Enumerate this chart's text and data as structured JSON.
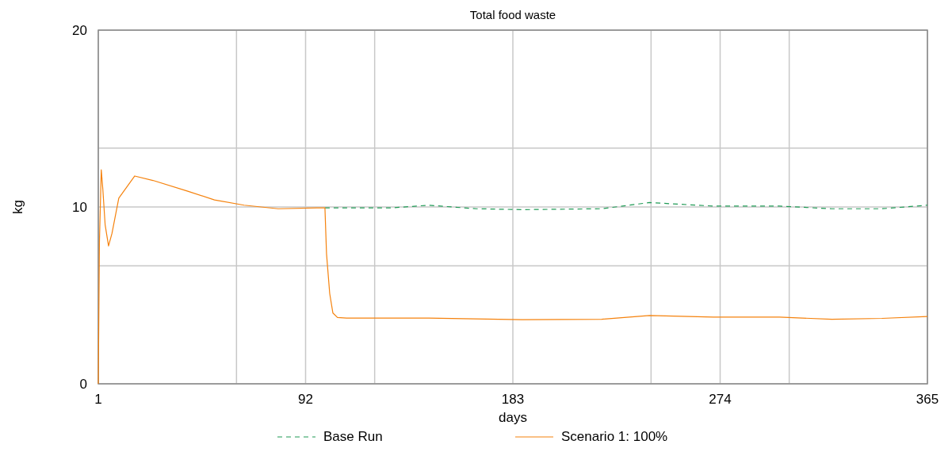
{
  "chart_data": {
    "type": "line",
    "title": "Total food waste",
    "xlabel": "days",
    "ylabel": "kg",
    "xlim": [
      1,
      365
    ],
    "ylim": [
      0,
      20
    ],
    "xticks": [
      1,
      {
        "value": 61.67,
        "label": null
      },
      92,
      {
        "value": 122.33,
        "label": null
      },
      183,
      {
        "value": 243.67,
        "label": null
      },
      274,
      {
        "value": 304.33,
        "label": null
      },
      365
    ],
    "yticks": [
      0,
      {
        "value": 6.67,
        "label": null
      },
      10,
      {
        "value": 13.33,
        "label": null
      },
      20
    ],
    "grid": true,
    "legend": "bottom",
    "series": [
      {
        "name": "Base Run",
        "color": "#1f9a55",
        "line_style": "dashed",
        "x": [
          100.5,
          107,
          130,
          146,
          167,
          187,
          222,
          243,
          271,
          300,
          323,
          345,
          365
        ],
        "values": [
          9.95,
          9.95,
          9.95,
          10.1,
          9.9,
          9.85,
          9.9,
          10.25,
          10.05,
          10.05,
          9.9,
          9.9,
          10.1
        ]
      },
      {
        "name": "Scenario 1: 100%",
        "color": "#f5820d",
        "line_style": "solid",
        "x": [
          1,
          1.5,
          2.3,
          3,
          4,
          5.5,
          7,
          10,
          17,
          25,
          40,
          52,
          65,
          80,
          97,
          100.5,
          101.2,
          102.6,
          104,
          106,
          110,
          146,
          187,
          222,
          243,
          271,
          300,
          323,
          345,
          365
        ],
        "values": [
          0,
          8,
          12.1,
          11,
          9,
          7.8,
          8.5,
          10.5,
          11.75,
          11.5,
          10.9,
          10.4,
          10.1,
          9.9,
          9.95,
          9.95,
          7.35,
          5.1,
          4.0,
          3.75,
          3.72,
          3.72,
          3.63,
          3.65,
          3.86,
          3.77,
          3.77,
          3.65,
          3.7,
          3.81
        ]
      }
    ]
  }
}
